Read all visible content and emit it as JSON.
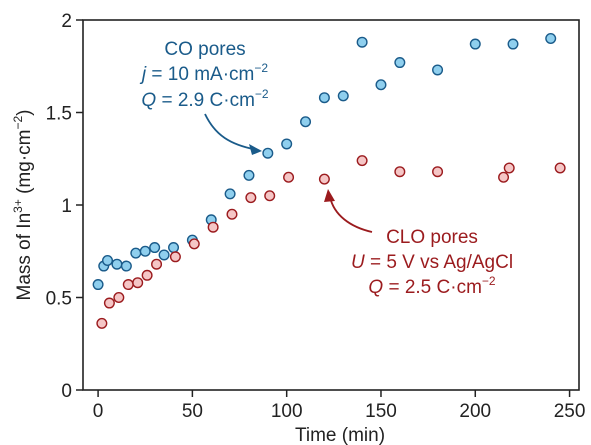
{
  "chart_data": {
    "type": "scatter",
    "xlabel": "Time (min)",
    "ylabel_parts": {
      "prefix": "Mass of In",
      "sup1": "3+",
      "mid": " (mg·cm",
      "sup2": "−2",
      "suffix": ")"
    },
    "xlim": [
      -8,
      255
    ],
    "ylim": [
      0,
      2
    ],
    "xticks": [
      0,
      50,
      100,
      150,
      200,
      250
    ],
    "yticks": [
      0,
      0.5,
      1,
      1.5,
      2
    ],
    "xtick_labels": [
      "0",
      "50",
      "100",
      "150",
      "200",
      "250"
    ],
    "ytick_labels": [
      "0",
      "0.5",
      "1",
      "1.5",
      "2"
    ],
    "grid": false,
    "series": [
      {
        "name": "CO pores",
        "color": "#1a5b8a",
        "fill": "#8fcfee",
        "points": [
          [
            0,
            0.57
          ],
          [
            3,
            0.67
          ],
          [
            5,
            0.7
          ],
          [
            10,
            0.68
          ],
          [
            15,
            0.67
          ],
          [
            20,
            0.74
          ],
          [
            25,
            0.75
          ],
          [
            30,
            0.77
          ],
          [
            35,
            0.73
          ],
          [
            40,
            0.77
          ],
          [
            50,
            0.81
          ],
          [
            60,
            0.92
          ],
          [
            70,
            1.06
          ],
          [
            80,
            1.16
          ],
          [
            90,
            1.28
          ],
          [
            100,
            1.33
          ],
          [
            110,
            1.45
          ],
          [
            120,
            1.58
          ],
          [
            130,
            1.59
          ],
          [
            140,
            1.88
          ],
          [
            150,
            1.65
          ],
          [
            160,
            1.77
          ],
          [
            180,
            1.73
          ],
          [
            200,
            1.87
          ],
          [
            220,
            1.87
          ],
          [
            240,
            1.9
          ]
        ]
      },
      {
        "name": "CLO pores",
        "color": "#9b1b1e",
        "fill": "#f5c6c6",
        "points": [
          [
            2,
            0.36
          ],
          [
            6,
            0.47
          ],
          [
            11,
            0.5
          ],
          [
            16,
            0.57
          ],
          [
            21,
            0.58
          ],
          [
            26,
            0.62
          ],
          [
            31,
            0.68
          ],
          [
            41,
            0.72
          ],
          [
            51,
            0.79
          ],
          [
            61,
            0.88
          ],
          [
            71,
            0.95
          ],
          [
            81,
            1.04
          ],
          [
            91,
            1.05
          ],
          [
            101,
            1.15
          ],
          [
            120,
            1.14
          ],
          [
            140,
            1.24
          ],
          [
            160,
            1.18
          ],
          [
            180,
            1.18
          ],
          [
            215,
            1.15
          ],
          [
            218,
            1.2
          ],
          [
            245,
            1.2
          ]
        ]
      }
    ],
    "annotations": {
      "co": {
        "color": "#1a5b8a",
        "line1": "CO pores",
        "line2_italic": "j",
        "line2_rest": " = 10 mA·cm",
        "line2_sup": "−2",
        "line3_italic": "Q",
        "line3_rest": " = 2.9 C·cm",
        "line3_sup": "−2"
      },
      "clo": {
        "color": "#9b1b1e",
        "line1": "CLO pores",
        "line2_italic": "U",
        "line2_rest": " = 5 V vs Ag/AgCl",
        "line3_italic": "Q",
        "line3_rest": " = 2.5 C·cm",
        "line3_sup": "−2"
      }
    }
  }
}
